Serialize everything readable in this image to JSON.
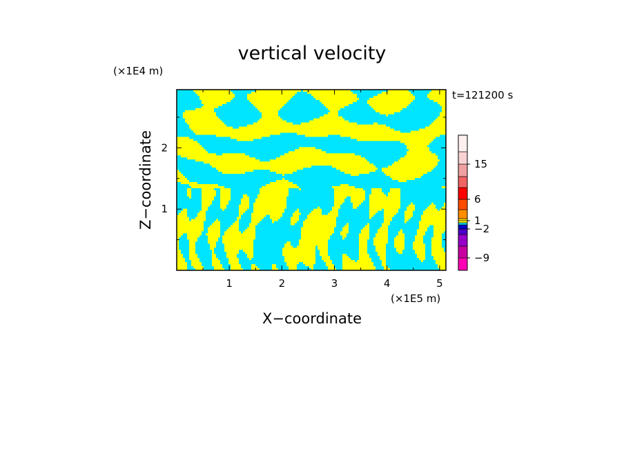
{
  "chart_data": {
    "type": "heatmap",
    "title": "vertical velocity",
    "xlabel": "X−coordinate",
    "ylabel": "Z−coordinate",
    "x_unit": "(×1E5 m)",
    "y_unit": "(×1E4 m)",
    "time_label": "t=121200 s",
    "xlim": [
      0,
      5.12
    ],
    "ylim": [
      0,
      2.95
    ],
    "x_ticks": [
      1,
      2,
      3,
      4,
      5
    ],
    "y_ticks": [
      1,
      2
    ],
    "field_colors": {
      "positive": "#ffff00",
      "negative": "#00e5ff"
    },
    "colorbar": {
      "levels": [
        -12,
        -9,
        -6,
        -4,
        -2,
        -1,
        0,
        1,
        2,
        4,
        6,
        9,
        12,
        15,
        18,
        21
      ],
      "tick_labels": [
        {
          "value": -9,
          "label": "−9"
        },
        {
          "value": -2,
          "label": "−2"
        },
        {
          "value": 1,
          "label": "1"
        },
        {
          "value": 6,
          "label": "6"
        },
        {
          "value": 15,
          "label": "15"
        }
      ],
      "colors": [
        "#ff00b4",
        "#c800a0",
        "#9600c8",
        "#4b00c8",
        "#0000c8",
        "#00e5ff",
        "#ffff00",
        "#ffd700",
        "#ff8c00",
        "#ff4b00",
        "#ff0000",
        "#f06464",
        "#f0a0a0",
        "#f8d2d2",
        "#fff0f0"
      ]
    }
  }
}
